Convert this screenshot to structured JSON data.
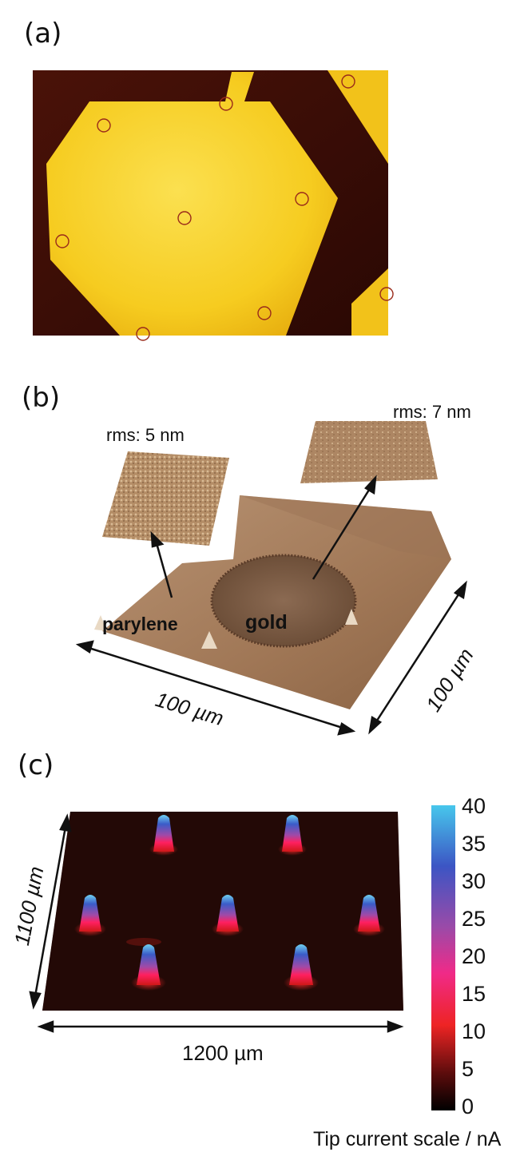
{
  "panels": {
    "a": {
      "label": "(a)"
    },
    "b": {
      "label": "(b)",
      "rms_parylene": "rms: 5 nm",
      "rms_gold": "rms: 7 nm",
      "parylene_label": "parylene",
      "gold_label": "gold",
      "width_label": "100 µm",
      "depth_label": "100 µm"
    },
    "c": {
      "label": "(c)",
      "height_label": "1100 µm",
      "width_label": "1200 µm",
      "colorbar_title": "Tip current scale / nA",
      "colorbar_ticks": [
        "40",
        "35",
        "30",
        "25",
        "20",
        "15",
        "10",
        "5",
        "0"
      ]
    }
  },
  "colors": {
    "gold": "#f9d22a",
    "substrate": "#3a0d06",
    "surface_brown": "#a57c5c",
    "colorbar_top": "#47c7ec",
    "colorbar_bottom": "#000000"
  }
}
